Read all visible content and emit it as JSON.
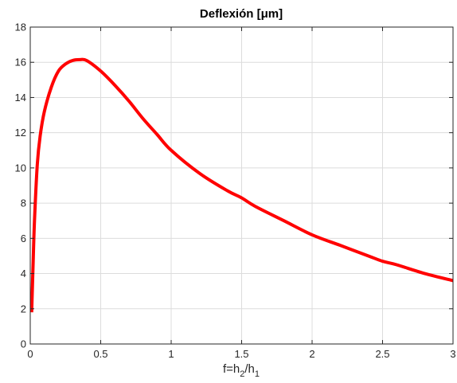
{
  "chart_data": {
    "type": "line",
    "title": "Deflexión [μm]",
    "xlabel": "f=h2/h1",
    "xlabel_parts": {
      "base1": "f=h",
      "sub1": "2",
      "slash": "/h",
      "sub2": "1"
    },
    "ylabel": "",
    "xlim": [
      0,
      3
    ],
    "ylim": [
      0,
      18
    ],
    "xticks": [
      0,
      0.5,
      1,
      1.5,
      2,
      2.5,
      3
    ],
    "xtick_labels": [
      "0",
      "0.5",
      "1",
      "1.5",
      "2",
      "2.5",
      "3"
    ],
    "yticks": [
      0,
      2,
      4,
      6,
      8,
      10,
      12,
      14,
      16,
      18
    ],
    "ytick_labels": [
      "0",
      "2",
      "4",
      "6",
      "8",
      "10",
      "12",
      "14",
      "16",
      "18"
    ],
    "grid": true,
    "series": [
      {
        "color": "#ff0000",
        "x": [
          0.01,
          0.02,
          0.03,
          0.05,
          0.07,
          0.1,
          0.15,
          0.2,
          0.25,
          0.3,
          0.35,
          0.4,
          0.5,
          0.6,
          0.7,
          0.8,
          0.9,
          1.0,
          1.2,
          1.4,
          1.5,
          1.6,
          1.8,
          2.0,
          2.2,
          2.4,
          2.5,
          2.6,
          2.8,
          3.0
        ],
        "y": [
          1.8,
          4.5,
          7.0,
          10.2,
          11.8,
          13.2,
          14.6,
          15.5,
          15.9,
          16.1,
          16.15,
          16.1,
          15.5,
          14.7,
          13.8,
          12.8,
          11.9,
          11.0,
          9.7,
          8.7,
          8.3,
          7.8,
          7.0,
          6.2,
          5.6,
          5.0,
          4.7,
          4.5,
          4.0,
          3.6
        ]
      }
    ]
  },
  "colors": {
    "line": "#ff0000",
    "grid": "#dcdcdc",
    "axis": "#262626"
  }
}
